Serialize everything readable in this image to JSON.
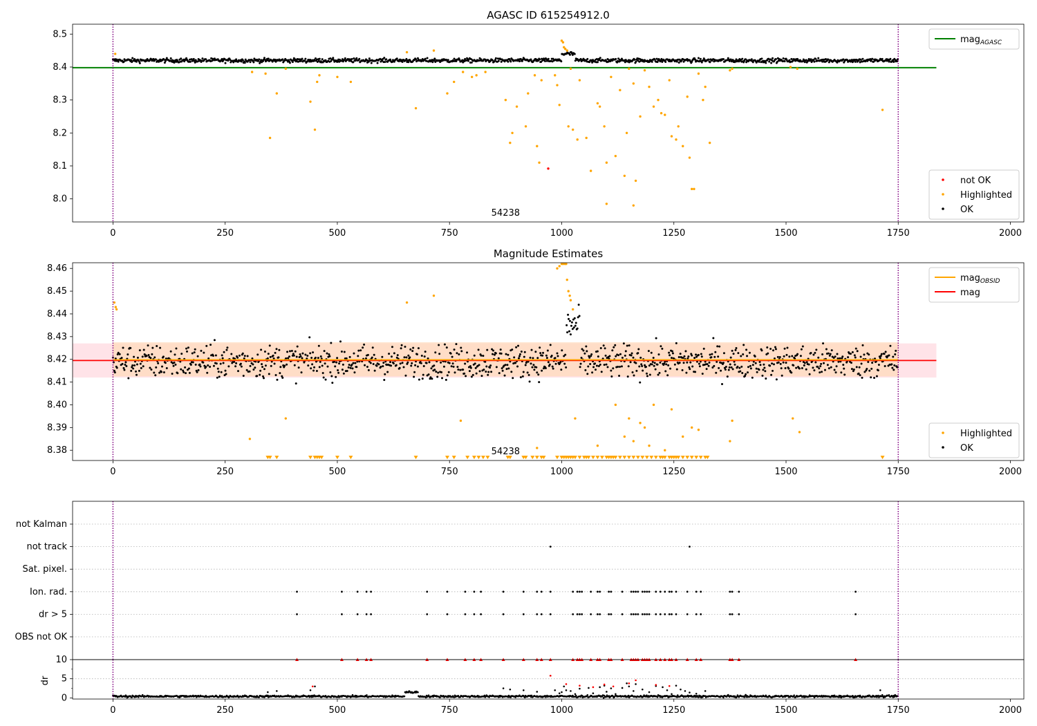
{
  "figure": {
    "background": "#ffffff"
  },
  "colors": {
    "ok": "#000000",
    "highlighted": "#ffa500",
    "not_ok": "#ff0000",
    "agasc_line": "#008000",
    "mag_line": "#ff0000",
    "mag_obsid": "#ffa500",
    "obs_boundary": "#800080",
    "band_fill": "#ffc0cb",
    "band_obsid_fill": "#ffdab9",
    "grid": "#b0b0b0"
  },
  "chart_data": [
    {
      "type": "scatter",
      "title": "AGASC ID 615254912.0",
      "xlabel": "",
      "ylabel": "",
      "xlim": [
        -90,
        2030
      ],
      "ylim": [
        7.93,
        8.53
      ],
      "xticks": [
        0,
        250,
        500,
        750,
        1000,
        1250,
        1500,
        1750,
        2000
      ],
      "yticks": [
        8.0,
        8.1,
        8.2,
        8.3,
        8.4,
        8.5
      ],
      "ytick_labels": [
        "8.0",
        "8.1",
        "8.2",
        "8.3",
        "8.4",
        "8.5"
      ],
      "obs_boundaries": [
        0,
        1750
      ],
      "annotation": "54238",
      "hlines": [
        {
          "name": "mag_AGASC",
          "y": 8.398,
          "x_range": [
            -90,
            1835
          ]
        }
      ],
      "legend": {
        "upper": {
          "position": "top-right",
          "entries": [
            {
              "label": "mag",
              "sub": "AGASC",
              "kind": "line",
              "color_key": "agasc_line"
            }
          ]
        },
        "lower": {
          "position": "bottom-right",
          "entries": [
            {
              "label": "not OK",
              "kind": "marker",
              "color_key": "not_ok"
            },
            {
              "label": "Highlighted",
              "kind": "marker",
              "color_key": "highlighted"
            },
            {
              "label": "OK",
              "kind": "marker",
              "color_key": "ok"
            }
          ]
        }
      },
      "series": [
        {
          "name": "OK",
          "kind": "band",
          "x_range": [
            0,
            1750
          ],
          "center": 8.42,
          "spread": 0.006,
          "bumps": [
            {
              "x": [
                1000,
                1030
              ],
              "center": 8.44
            }
          ]
        },
        {
          "name": "Highlighted",
          "kind": "points",
          "x": [
            5,
            310,
            340,
            350,
            365,
            385,
            440,
            450,
            455,
            460,
            500,
            530,
            655,
            675,
            715,
            745,
            760,
            780,
            800,
            810,
            830,
            875,
            885,
            890,
            900,
            920,
            925,
            940,
            945,
            950,
            955,
            985,
            990,
            995,
            1000,
            1003,
            1005,
            1008,
            1012,
            1015,
            1020,
            1025,
            1035,
            1040,
            1055,
            1065,
            1080,
            1085,
            1095,
            1100,
            1110,
            1120,
            1130,
            1140,
            1145,
            1150,
            1160,
            1165,
            1175,
            1185,
            1195,
            1205,
            1215,
            1222,
            1230,
            1240,
            1245,
            1255,
            1260,
            1270,
            1280,
            1285,
            1295,
            1305,
            1315,
            1320,
            1330,
            1375,
            1380,
            1510,
            1525,
            1715
          ],
          "y": [
            8.44,
            8.385,
            8.38,
            8.185,
            8.32,
            8.395,
            8.295,
            8.21,
            8.355,
            8.375,
            8.37,
            8.355,
            8.445,
            8.275,
            8.45,
            8.32,
            8.355,
            8.385,
            8.37,
            8.375,
            8.385,
            8.3,
            8.17,
            8.2,
            8.28,
            8.22,
            8.32,
            8.375,
            8.16,
            8.11,
            8.36,
            8.375,
            8.345,
            8.285,
            8.48,
            8.475,
            8.46,
            8.455,
            8.45,
            8.22,
            8.395,
            8.21,
            8.18,
            8.36,
            8.185,
            8.085,
            8.29,
            8.28,
            8.22,
            8.11,
            8.37,
            8.13,
            8.33,
            8.07,
            8.2,
            8.395,
            8.35,
            8.055,
            8.25,
            8.39,
            8.34,
            8.28,
            8.3,
            8.26,
            8.255,
            8.36,
            8.19,
            8.18,
            8.22,
            8.16,
            8.31,
            8.125,
            8.03,
            8.38,
            8.3,
            8.34,
            8.17,
            8.39,
            8.395,
            8.4,
            8.395,
            8.27
          ]
        },
        {
          "name": "Highlighted (low)",
          "kind": "points",
          "x": [
            1100,
            1160,
            1290
          ],
          "y": [
            7.985,
            7.98,
            8.03
          ]
        },
        {
          "name": "not OK",
          "kind": "points",
          "x": [
            970
          ],
          "y": [
            8.092
          ]
        }
      ]
    },
    {
      "type": "scatter",
      "title": "Magnitude Estimates",
      "xlabel": "",
      "ylabel": "",
      "xlim": [
        -90,
        2030
      ],
      "ylim": [
        8.3755,
        8.4625
      ],
      "xticks": [
        0,
        250,
        500,
        750,
        1000,
        1250,
        1500,
        1750,
        2000
      ],
      "yticks": [
        8.38,
        8.39,
        8.4,
        8.41,
        8.42,
        8.43,
        8.44,
        8.45,
        8.46
      ],
      "ytick_labels": [
        "8.38",
        "8.39",
        "8.40",
        "8.41",
        "8.42",
        "8.43",
        "8.44",
        "8.45",
        "8.46"
      ],
      "obs_boundaries": [
        0,
        1750
      ],
      "annotation": "54238",
      "hlines": [
        {
          "name": "mag",
          "y": 8.4195,
          "x_range": [
            -90,
            1835
          ],
          "band": [
            8.412,
            8.427
          ]
        },
        {
          "name": "mag_OBSID",
          "y": 8.4195,
          "x_range": [
            0,
            1750
          ],
          "band": [
            8.4125,
            8.4275
          ]
        }
      ],
      "legend": {
        "upper": {
          "position": "top-right",
          "entries": [
            {
              "label": "mag",
              "sub": "OBSID",
              "kind": "line",
              "color_key": "mag_obsid"
            },
            {
              "label": "mag",
              "kind": "line",
              "color_key": "mag_line"
            }
          ]
        },
        "lower": {
          "position": "bottom-right",
          "entries": [
            {
              "label": "Highlighted",
              "kind": "marker",
              "color_key": "highlighted"
            },
            {
              "label": "OK",
              "kind": "marker",
              "color_key": "ok"
            }
          ]
        }
      },
      "series": [
        {
          "name": "OK",
          "kind": "band",
          "x_range": [
            0,
            1750
          ],
          "center": 8.419,
          "spread": 0.007,
          "bumps": [
            {
              "x": [
                1010,
                1040
              ],
              "center": 8.435
            }
          ]
        },
        {
          "name": "Highlighted",
          "kind": "points",
          "x": [
            3,
            6,
            8,
            305,
            385,
            655,
            715,
            775,
            945,
            990,
            995,
            1000,
            1002,
            1005,
            1008,
            1010,
            1012,
            1015,
            1018,
            1020,
            1025,
            1030,
            1080,
            1120,
            1140,
            1150,
            1160,
            1175,
            1185,
            1195,
            1205,
            1230,
            1245,
            1270,
            1290,
            1305,
            1375,
            1380,
            1515,
            1530
          ],
          "y": [
            8.445,
            8.443,
            8.442,
            8.385,
            8.394,
            8.445,
            8.448,
            8.393,
            8.381,
            8.46,
            8.461,
            8.462,
            8.462,
            8.462,
            8.462,
            8.462,
            8.455,
            8.45,
            8.448,
            8.446,
            8.442,
            8.394,
            8.382,
            8.4,
            8.386,
            8.394,
            8.384,
            8.392,
            8.39,
            8.382,
            8.4,
            8.38,
            8.398,
            8.386,
            8.39,
            8.389,
            8.384,
            8.393,
            8.394,
            8.388
          ]
        },
        {
          "name": "Highlighted (below axis)",
          "kind": "triangles",
          "x": [
            345,
            350,
            365,
            440,
            450,
            455,
            460,
            465,
            500,
            530,
            675,
            745,
            760,
            790,
            805,
            815,
            825,
            835,
            880,
            885,
            915,
            920,
            935,
            945,
            955,
            960,
            990,
            1000,
            1005,
            1010,
            1015,
            1020,
            1025,
            1030,
            1040,
            1050,
            1055,
            1060,
            1070,
            1080,
            1090,
            1100,
            1105,
            1110,
            1115,
            1120,
            1130,
            1140,
            1150,
            1160,
            1170,
            1180,
            1190,
            1200,
            1210,
            1220,
            1225,
            1230,
            1240,
            1245,
            1250,
            1255,
            1260,
            1270,
            1280,
            1290,
            1300,
            1310,
            1320,
            1325,
            1715
          ],
          "y_clip": 8.377
        }
      ]
    },
    {
      "type": "scatter",
      "title": "",
      "xlabel": "",
      "ylabel": "",
      "xlim": [
        -90,
        2030
      ],
      "categories": [
        "not Kalman",
        "not track",
        "Sat. pixel.",
        "Ion. rad.",
        "dr > 5",
        "OBS not OK"
      ],
      "obs_boundaries": [
        0,
        1750
      ],
      "series": [
        {
          "name": "not Kalman",
          "x": []
        },
        {
          "name": "not track",
          "x": [
            975,
            1285
          ]
        },
        {
          "name": "Sat. pixel.",
          "x": []
        },
        {
          "name": "Ion. rad.",
          "x": [
            410,
            510,
            545,
            565,
            575,
            700,
            745,
            785,
            805,
            820,
            870,
            915,
            945,
            955,
            975,
            1025,
            1035,
            1040,
            1045,
            1065,
            1080,
            1085,
            1105,
            1110,
            1135,
            1155,
            1160,
            1165,
            1170,
            1180,
            1185,
            1190,
            1195,
            1210,
            1220,
            1230,
            1240,
            1245,
            1255,
            1280,
            1300,
            1310,
            1375,
            1380,
            1395,
            1655
          ]
        },
        {
          "name": "dr > 5",
          "x": [
            410,
            510,
            545,
            565,
            575,
            700,
            745,
            785,
            805,
            820,
            870,
            915,
            945,
            955,
            975,
            1025,
            1035,
            1040,
            1045,
            1065,
            1080,
            1085,
            1105,
            1110,
            1135,
            1155,
            1160,
            1165,
            1170,
            1180,
            1185,
            1190,
            1195,
            1210,
            1220,
            1230,
            1240,
            1245,
            1255,
            1280,
            1300,
            1310,
            1375,
            1380,
            1395,
            1655
          ]
        },
        {
          "name": "OBS not OK",
          "x": []
        }
      ]
    },
    {
      "type": "scatter",
      "title": "",
      "xlabel": "",
      "ylabel": "dr",
      "xlim": [
        -90,
        2030
      ],
      "ylim": [
        -0.3,
        10.0
      ],
      "xticks": [
        0,
        250,
        500,
        750,
        1000,
        1250,
        1500,
        1750,
        2000
      ],
      "yticks": [
        0,
        5,
        10
      ],
      "ytick_labels": [
        "0",
        "5",
        "10"
      ],
      "obs_boundaries": [
        0,
        1750
      ],
      "series": [
        {
          "name": "dr",
          "kind": "band",
          "x_range": [
            0,
            1750
          ],
          "center": 0.4,
          "spread": 0.25,
          "bumps": [
            {
              "x": [
                650,
                680
              ],
              "center": 1.5
            }
          ]
        },
        {
          "name": "dr scattered",
          "kind": "points",
          "x": [
            345,
            365,
            440,
            450,
            870,
            885,
            915,
            945,
            975,
            985,
            995,
            1000,
            1005,
            1010,
            1020,
            1030,
            1040,
            1060,
            1070,
            1085,
            1095,
            1100,
            1110,
            1120,
            1135,
            1145,
            1150,
            1160,
            1165,
            1180,
            1195,
            1210,
            1225,
            1235,
            1245,
            1255,
            1265,
            1275,
            1285,
            1300,
            1320,
            1710
          ],
          "y": [
            1.5,
            1.8,
            2.0,
            3.0,
            2.5,
            2.2,
            2.0,
            1.6,
            5.8,
            2.0,
            1.2,
            1.5,
            3.0,
            2.0,
            1.8,
            1.0,
            2.4,
            2.6,
            1.2,
            2.8,
            3.2,
            1.6,
            2.5,
            1.0,
            2.6,
            3.8,
            3.0,
            1.8,
            3.6,
            2.2,
            1.5,
            3.1,
            2.8,
            2.0,
            1.0,
            3.2,
            2.2,
            1.8,
            1.4,
            1.1,
            1.8,
            2.0
          ]
        },
        {
          "name": "dr capped",
          "kind": "capped",
          "color_key": "not_ok",
          "x": [
            410,
            510,
            545,
            565,
            575,
            700,
            745,
            785,
            805,
            820,
            870,
            915,
            945,
            955,
            975,
            1025,
            1035,
            1040,
            1045,
            1065,
            1080,
            1085,
            1105,
            1110,
            1135,
            1155,
            1160,
            1165,
            1170,
            1180,
            1185,
            1190,
            1195,
            1210,
            1220,
            1230,
            1240,
            1245,
            1255,
            1280,
            1300,
            1310,
            1375,
            1380,
            1395,
            1655
          ],
          "y": 10
        },
        {
          "name": "dr highlighted",
          "kind": "points",
          "color_key": "not_ok",
          "x": [
            445,
            975,
            1010,
            1040,
            1070,
            1095,
            1115,
            1150,
            1165,
            1210,
            1240
          ],
          "y": [
            3.0,
            5.8,
            3.6,
            3.2,
            2.8,
            3.5,
            3.0,
            3.8,
            4.6,
            3.4,
            3.1
          ]
        }
      ]
    }
  ]
}
